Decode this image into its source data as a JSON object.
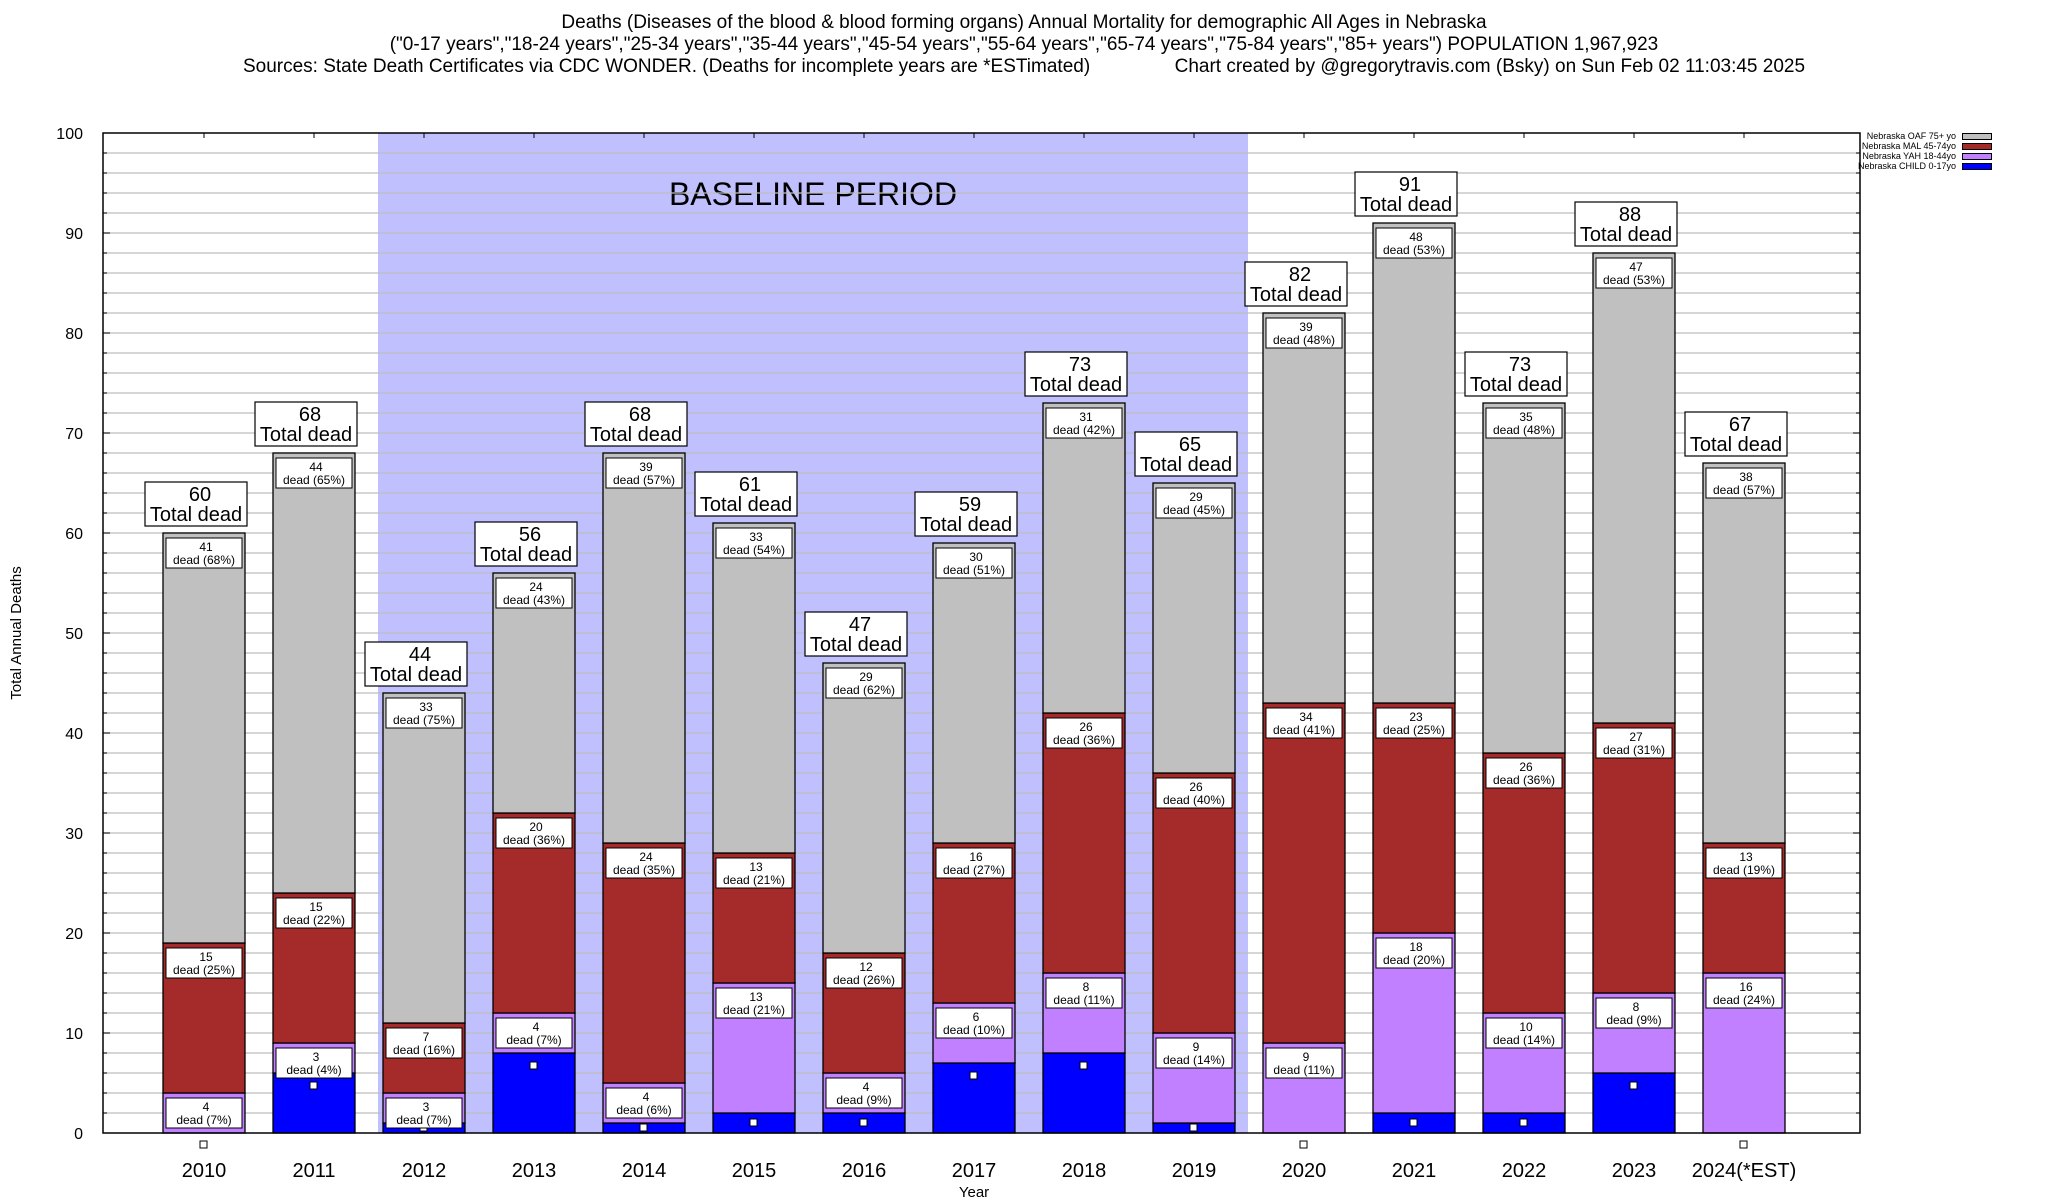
{
  "titles": {
    "line1": "Deaths (Diseases of the blood & blood forming organs) Annual Mortality for demographic All Ages in Nebraska",
    "line2": "(\"0-17 years\",\"18-24 years\",\"25-34 years\",\"35-44 years\",\"45-54 years\",\"55-64 years\",\"65-74 years\",\"75-84 years\",\"85+ years\") POPULATION 1,967,923",
    "line3": "Sources: State Death Certificates via CDC WONDER. (Deaths for incomplete years are *ESTimated)                Chart created by @gregorytravis.com (Bsky) on Sun Feb 02 11:03:45 2025"
  },
  "chart_data": {
    "type": "bar",
    "stacked": true,
    "title": "Deaths (Diseases of the blood & blood forming organs) Annual Mortality for demographic All Ages in Nebraska",
    "xlabel": "Year",
    "ylabel": "Total Annual Deaths",
    "ylim": [
      0,
      100
    ],
    "yticks": [
      0,
      10,
      20,
      30,
      40,
      50,
      60,
      70,
      80,
      90,
      100
    ],
    "grid": true,
    "legend_position": "top-right",
    "categories": [
      "2010",
      "2011",
      "2012",
      "2013",
      "2014",
      "2015",
      "2016",
      "2017",
      "2018",
      "2019",
      "2020",
      "2021",
      "2022",
      "2023",
      "2024(*EST)"
    ],
    "series": [
      {
        "name": "Nebraska CHILD 0-17yo",
        "color": "#0000ff",
        "values": [
          0,
          6,
          1,
          8,
          1,
          2,
          2,
          7,
          8,
          1,
          0,
          2,
          2,
          6,
          0
        ]
      },
      {
        "name": "Nebraska YAH 18-44yo",
        "color": "#c080ff",
        "values": [
          4,
          3,
          3,
          4,
          4,
          13,
          4,
          6,
          8,
          9,
          9,
          18,
          10,
          8,
          16
        ]
      },
      {
        "name": "Nebraska MAL 45-74yo",
        "color": "#a52a2a",
        "values": [
          15,
          15,
          7,
          20,
          24,
          13,
          12,
          16,
          26,
          26,
          34,
          23,
          26,
          27,
          13
        ]
      },
      {
        "name": "Nebraska OAF 75+ yo",
        "color": "#c0c0c0",
        "values": [
          41,
          44,
          33,
          24,
          39,
          33,
          29,
          30,
          31,
          29,
          39,
          48,
          35,
          47,
          38
        ]
      }
    ],
    "percent_labels": {
      "Nebraska YAH 18-44yo": [
        "7%",
        "4%",
        "7%",
        "7%",
        "6%",
        "21%",
        "9%",
        "10%",
        "11%",
        "14%",
        "11%",
        "20%",
        "14%",
        "9%",
        "24%"
      ],
      "Nebraska MAL 45-74yo": [
        "25%",
        "22%",
        "16%",
        "36%",
        "35%",
        "21%",
        "26%",
        "27%",
        "36%",
        "40%",
        "41%",
        "25%",
        "36%",
        "31%",
        "19%"
      ],
      "Nebraska OAF 75+ yo": [
        "68%",
        "65%",
        "75%",
        "43%",
        "57%",
        "54%",
        "62%",
        "51%",
        "42%",
        "45%",
        "48%",
        "53%",
        "48%",
        "53%",
        "57%"
      ]
    },
    "totals": [
      60,
      68,
      44,
      56,
      68,
      61,
      47,
      59,
      73,
      65,
      82,
      91,
      73,
      88,
      67
    ],
    "total_label_suffix": "Total dead",
    "segment_label_word": "dead",
    "annotations": [
      {
        "text": "BASELINE PERIOD",
        "span": [
          "2012",
          "2019"
        ],
        "color": "#c0c0ff"
      }
    ]
  },
  "legend": [
    {
      "label": "Nebraska OAF 75+ yo",
      "color": "#c0c0c0"
    },
    {
      "label": "Nebraska MAL 45-74yo",
      "color": "#a52a2a"
    },
    {
      "label": "Nebraska YAH 18-44yo",
      "color": "#c080ff"
    },
    {
      "label": "Nebraska CHILD 0-17yo",
      "color": "#0000ff"
    }
  ]
}
